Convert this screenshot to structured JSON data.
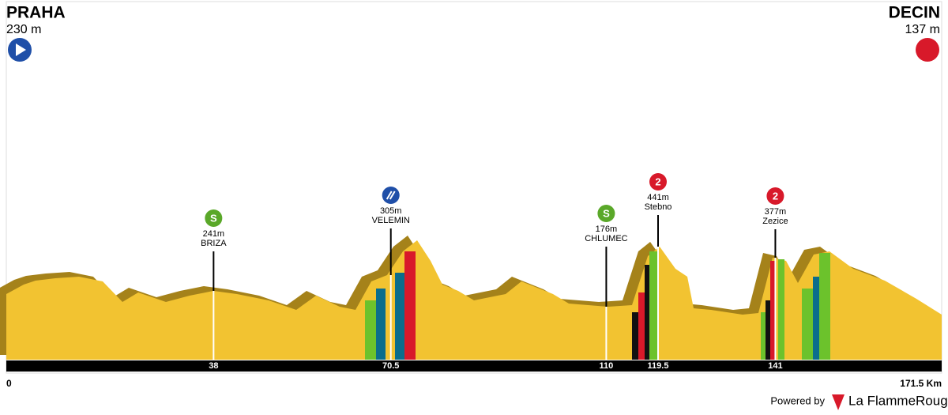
{
  "start": {
    "name": "PRAHA",
    "elevation": "230 m"
  },
  "finish": {
    "name": "DECIN",
    "elevation": "137 m"
  },
  "distance": {
    "start": 0,
    "end": {
      "value": 171.5,
      "label": "171.5 Km"
    }
  },
  "points": [
    {
      "km": 38,
      "elevation": "241m",
      "name": "BRIZA",
      "icon": "S"
    },
    {
      "km": 70.5,
      "elevation": "305m",
      "name": "VELEMIN"
    },
    {
      "km": 110,
      "elevation": "176m",
      "name": "CHLUMEC",
      "icon": "S"
    },
    {
      "km": 119.5,
      "elevation": "441m",
      "name": "Stebno",
      "icon": "2"
    },
    {
      "km": 141,
      "elevation": "377m",
      "name": "Zezice",
      "icon": "2"
    }
  ],
  "footer": {
    "powered": "Powered by",
    "brand": "La FlammeRouge"
  }
}
